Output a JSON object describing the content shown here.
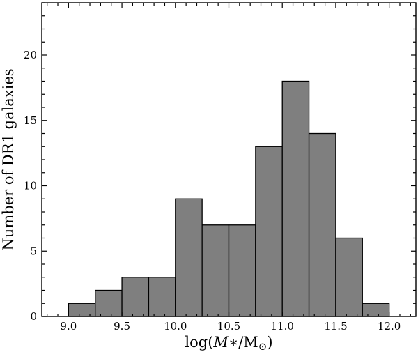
{
  "chart_data": {
    "type": "bar",
    "title": "",
    "xlabel_prefix": "log(",
    "xlabel_var": "M",
    "xlabel_mid": "∗/M",
    "xlabel_sub": "⊙",
    "xlabel_suffix": ")",
    "ylabel": "Number of DR1 galaxies",
    "xlim": [
      8.75,
      12.25
    ],
    "ylim": [
      0,
      24
    ],
    "x_ticks": [
      "9.0",
      "9.5",
      "10.0",
      "10.5",
      "11.0",
      "11.5",
      "12.0"
    ],
    "y_ticks": [
      "0",
      "5",
      "10",
      "15",
      "20"
    ],
    "bin_edges": [
      9.0,
      9.25,
      9.5,
      9.75,
      10.0,
      10.25,
      10.5,
      10.75,
      11.0,
      11.25,
      11.5,
      11.75,
      12.0
    ],
    "values": [
      1,
      2,
      3,
      3,
      9,
      7,
      7,
      13,
      18,
      14,
      6,
      1
    ],
    "bar_color": "#7f7f7f",
    "grid": false
  }
}
